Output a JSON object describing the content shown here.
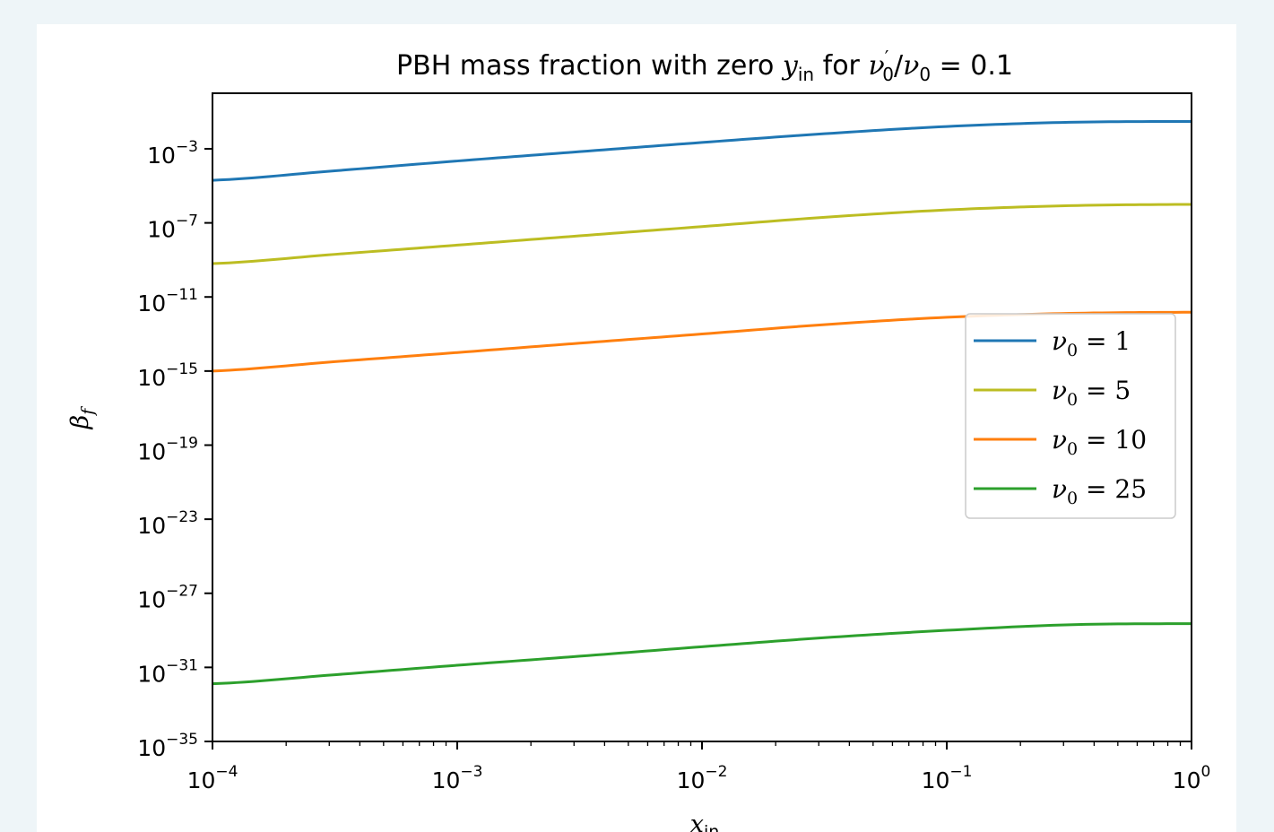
{
  "chart_data": {
    "type": "line",
    "title": {
      "prefix": "PBH mass fraction with zero ",
      "y_symbol": "y",
      "y_subscript": "in",
      "mid": " for ",
      "nu": "ν",
      "prime_sub": "0",
      "prime": "′",
      "slash": "/",
      "nu2": "ν",
      "sub2": "0",
      "equals": " = 0.1"
    },
    "xlabel": {
      "base": "x",
      "sub": "in"
    },
    "ylabel": {
      "base": "β",
      "sub": "f"
    },
    "xscale": "log",
    "yscale": "log",
    "xlim": [
      0.0001,
      1
    ],
    "ylim": [
      1e-35,
      1.0
    ],
    "x_ticks": [
      {
        "value": 0.0001,
        "base": "10",
        "exp": "−4"
      },
      {
        "value": 0.001,
        "base": "10",
        "exp": "−3"
      },
      {
        "value": 0.01,
        "base": "10",
        "exp": "−2"
      },
      {
        "value": 0.1,
        "base": "10",
        "exp": "−1"
      },
      {
        "value": 1,
        "base": "10",
        "exp": "0"
      }
    ],
    "y_ticks": [
      {
        "value": 0.001,
        "base": "10",
        "exp": "−3"
      },
      {
        "value": 1e-07,
        "base": "10",
        "exp": "−7"
      },
      {
        "value": 1e-11,
        "base": "10",
        "exp": "−11"
      },
      {
        "value": 1e-15,
        "base": "10",
        "exp": "−15"
      },
      {
        "value": 1e-19,
        "base": "10",
        "exp": "−19"
      },
      {
        "value": 1e-23,
        "base": "10",
        "exp": "−23"
      },
      {
        "value": 1e-27,
        "base": "10",
        "exp": "−27"
      },
      {
        "value": 1e-31,
        "base": "10",
        "exp": "−31"
      },
      {
        "value": 1e-35,
        "base": "10",
        "exp": "−35"
      }
    ],
    "legend_position": "center-right",
    "x": [
      0.0001,
      0.000316,
      0.001,
      0.00316,
      0.01,
      0.0316,
      0.1,
      0.316,
      1
    ],
    "series": [
      {
        "name": "ν₀ = 1",
        "legend_sub": "0",
        "legend_value": "1",
        "color": "#1f77b4",
        "values": [
          2e-05,
          6.5e-05,
          0.00022,
          0.0007,
          0.0022,
          0.0065,
          0.016,
          0.027,
          0.03
        ]
      },
      {
        "name": "ν₀ = 5",
        "legend_sub": "0",
        "legend_value": "5",
        "color": "#bcbd22",
        "values": [
          6.3e-10,
          2e-09,
          6.3e-09,
          2e-08,
          6.3e-08,
          2e-07,
          5e-07,
          8.5e-07,
          1e-06
        ]
      },
      {
        "name": "ν₀ = 10",
        "legend_sub": "0",
        "legend_value": "10",
        "color": "#ff7f0e",
        "values": [
          1e-15,
          3.2e-15,
          1e-14,
          3.2e-14,
          1e-13,
          3.2e-13,
          8e-13,
          1.3e-12,
          1.5e-12
        ]
      },
      {
        "name": "ν₀ = 25",
        "legend_sub": "0",
        "legend_value": "25",
        "color": "#2ca02c",
        "values": [
          1.3e-32,
          4e-32,
          1.3e-31,
          4e-31,
          1.3e-30,
          4e-30,
          1e-29,
          2e-29,
          2.3e-29
        ]
      }
    ]
  }
}
